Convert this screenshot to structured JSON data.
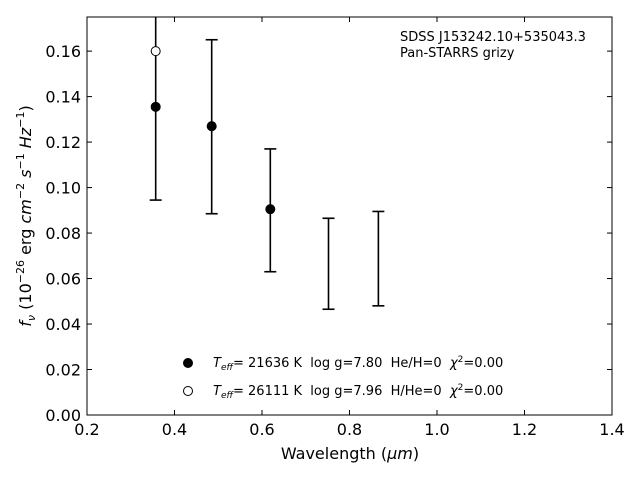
{
  "chart_data": {
    "type": "scatter",
    "xlabel_main": "Wavelength (",
    "xlabel_unit": "μm",
    "xlabel_close": ")",
    "ylabel": {
      "f": "f",
      "nu": "ν",
      "open": " (10",
      "exp": "−26",
      "erg": " erg ",
      "cm": "cm",
      "cm_exp": "−2",
      "s": " s",
      "s_exp": "−1",
      "hz": " Hz",
      "hz_exp": "−1",
      "close": ")"
    },
    "xlim": [
      0.2,
      1.4
    ],
    "ylim": [
      0.0,
      0.175
    ],
    "xticks": [
      "0.2",
      "0.4",
      "0.6",
      "0.8",
      "1.0",
      "1.2",
      "1.4"
    ],
    "xtick_values": [
      0.2,
      0.4,
      0.6,
      0.8,
      1.0,
      1.2,
      1.4
    ],
    "yticks": [
      "0.00",
      "0.02",
      "0.04",
      "0.06",
      "0.08",
      "0.10",
      "0.12",
      "0.14",
      "0.16"
    ],
    "ytick_values": [
      0.0,
      0.02,
      0.04,
      0.06,
      0.08,
      0.1,
      0.12,
      0.14,
      0.16
    ],
    "annotations": [
      "SDSS J153242.10+535043.3",
      "Pan-STARRS grizy"
    ],
    "observed": [
      {
        "x": 0.357,
        "lower": 0.0945,
        "upper": 0.1775
      },
      {
        "x": 0.485,
        "lower": 0.0885,
        "upper": 0.165
      },
      {
        "x": 0.619,
        "lower": 0.063,
        "upper": 0.117
      },
      {
        "x": 0.752,
        "lower": 0.0465,
        "upper": 0.0865
      },
      {
        "x": 0.866,
        "lower": 0.048,
        "upper": 0.0895
      }
    ],
    "series": [
      {
        "marker": "filled",
        "legend": {
          "t": "T",
          "eff": "eff",
          "text": "= 21636 K  log g=7.80  He/H=0  ",
          "chi": "χ",
          "two": "2",
          "tail": "=0.00"
        },
        "points": [
          {
            "x": 0.357,
            "y": 0.1355
          },
          {
            "x": 0.485,
            "y": 0.127
          },
          {
            "x": 0.619,
            "y": 0.0905
          }
        ]
      },
      {
        "marker": "open",
        "legend": {
          "t": "T",
          "eff": "eff",
          "text": "= 26111 K  log g=7.96  H/He=0  ",
          "chi": "χ",
          "two": "2",
          "tail": "=0.00"
        },
        "points": [
          {
            "x": 0.357,
            "y": 0.16
          }
        ]
      }
    ]
  }
}
